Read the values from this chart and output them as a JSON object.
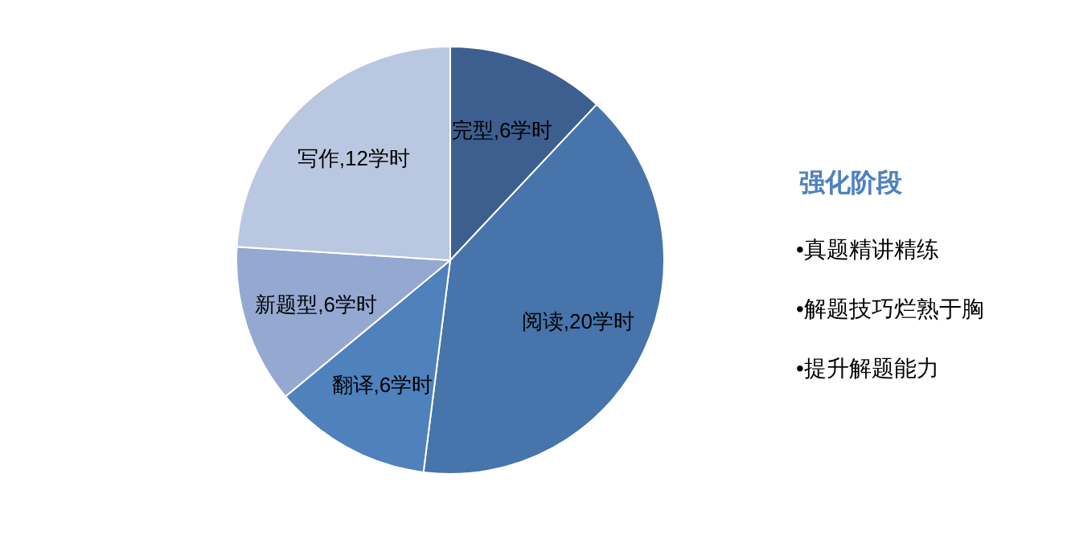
{
  "chart_data": {
    "type": "pie",
    "title": "强化阶段",
    "categories": [
      "完型",
      "阅读",
      "翻译",
      "新题型",
      "写作"
    ],
    "values": [
      6,
      20,
      6,
      6,
      12
    ],
    "colors": [
      "#3c5f8f",
      "#4674ab",
      "#4f81bd",
      "#94a8d1",
      "#bac7e1"
    ],
    "value_labels": [
      ",6学时",
      ",20学时",
      ",6学时",
      ",6学时",
      ",12学时"
    ],
    "annotations": [
      "•真题精讲精练",
      "•解题技巧烂熟于胸",
      "•提升解题能力"
    ],
    "legend": false
  }
}
